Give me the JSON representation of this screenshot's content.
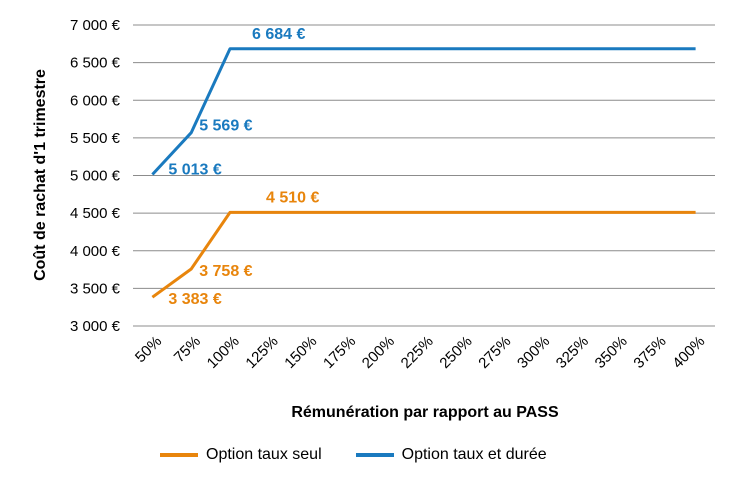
{
  "chart_data": {
    "type": "line",
    "categories": [
      "50%",
      "75%",
      "100%",
      "125%",
      "150%",
      "175%",
      "200%",
      "225%",
      "250%",
      "275%",
      "300%",
      "325%",
      "350%",
      "375%",
      "400%"
    ],
    "ylabel": "Coût de rachat d'1 trimestre",
    "xlabel": "Rémunération par rapport au PASS",
    "ylim": [
      3000,
      7000
    ],
    "yticks": [
      3000,
      3500,
      4000,
      4500,
      5000,
      5500,
      6000,
      6500,
      7000
    ],
    "ytick_labels": [
      "3 000 €",
      "3 500 €",
      "4 000 €",
      "4 500 €",
      "5 000 €",
      "5 500 €",
      "6 000 €",
      "6 500 €",
      "7 000 €"
    ],
    "grid": true,
    "legend_position": "bottom",
    "series": [
      {
        "name": "Option taux seul",
        "color": "#e8850c",
        "values": [
          3383,
          3758,
          4510,
          4510,
          4510,
          4510,
          4510,
          4510,
          4510,
          4510,
          4510,
          4510,
          4510,
          4510,
          4510
        ],
        "data_labels": [
          {
            "index": 0,
            "text": "3 383 €"
          },
          {
            "index": 1,
            "text": "3 758 €"
          },
          {
            "index": 2,
            "text": "4 510 €"
          }
        ]
      },
      {
        "name": "Option taux et durée",
        "color": "#1a7abf",
        "values": [
          5013,
          5569,
          6684,
          6684,
          6684,
          6684,
          6684,
          6684,
          6684,
          6684,
          6684,
          6684,
          6684,
          6684,
          6684
        ],
        "data_labels": [
          {
            "index": 0,
            "text": "5 013 €"
          },
          {
            "index": 1,
            "text": "5 569 €"
          },
          {
            "index": 2,
            "text": "6 684 €"
          }
        ]
      }
    ]
  }
}
